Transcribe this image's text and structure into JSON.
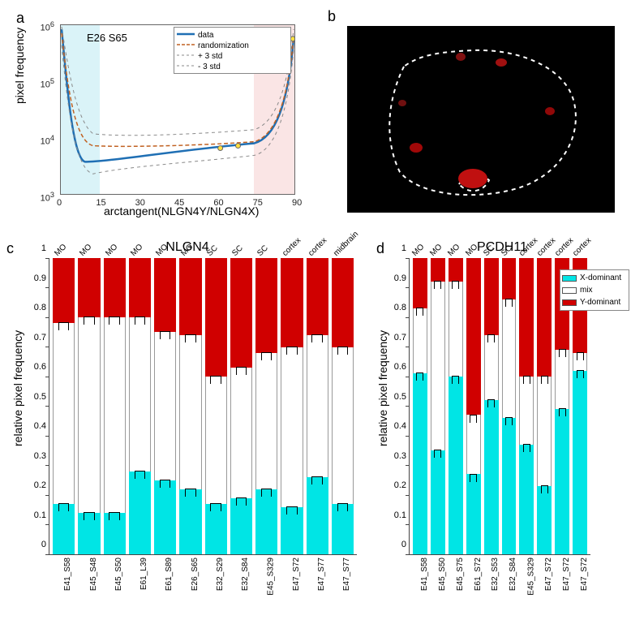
{
  "panel_a": {
    "label": "a",
    "sample": "E26 S65",
    "ylabel": "pixel frequency",
    "xlabel": "arctangent(NLGN4Y/NLGN4X)",
    "ylim": [
      1000,
      1000000
    ],
    "yticks": [
      "10^3",
      "10^4",
      "10^5",
      "10^6"
    ],
    "xlim": [
      0,
      90
    ],
    "xticks": [
      "0",
      "15",
      "30",
      "45",
      "60",
      "75",
      "90"
    ],
    "legend": [
      "data",
      "randomization",
      "+ 3 std",
      "- 3 std"
    ],
    "line_colors": {
      "data": "#1f6fb4",
      "rand": "#c06020",
      "plus3": "#888888",
      "minus3": "#888888"
    },
    "shade_left_color": "#a8e3ed",
    "shade_right_color": "#f4c3c3"
  },
  "panel_b": {
    "label": "b"
  },
  "panel_c": {
    "label": "c",
    "title": "NLGN4",
    "ylabel": "relative pixel frequency",
    "ylim": [
      0,
      1
    ],
    "ytick_step": 0.1,
    "samples": [
      {
        "id": "E41_S58",
        "region": "MO",
        "x": 0.17,
        "mix": 0.61,
        "y": 0.22
      },
      {
        "id": "E45_S48",
        "region": "MO",
        "x": 0.14,
        "mix": 0.66,
        "y": 0.2
      },
      {
        "id": "E45_S50",
        "region": "MO",
        "x": 0.14,
        "mix": 0.66,
        "y": 0.2
      },
      {
        "id": "E61_L39",
        "region": "MO",
        "x": 0.28,
        "mix": 0.52,
        "y": 0.2
      },
      {
        "id": "E61_S89",
        "region": "MO",
        "x": 0.25,
        "mix": 0.5,
        "y": 0.25
      },
      {
        "id": "E26_S65",
        "region": "MO",
        "x": 0.22,
        "mix": 0.52,
        "y": 0.26
      },
      {
        "id": "E32_S29",
        "region": "SC",
        "x": 0.17,
        "mix": 0.43,
        "y": 0.4
      },
      {
        "id": "E32_S84",
        "region": "SC",
        "x": 0.19,
        "mix": 0.44,
        "y": 0.37
      },
      {
        "id": "E45_S329",
        "region": "SC",
        "x": 0.22,
        "mix": 0.46,
        "y": 0.32
      },
      {
        "id": "E47_S72",
        "region": "cortex",
        "x": 0.16,
        "mix": 0.54,
        "y": 0.3
      },
      {
        "id": "E47_S77",
        "region": "cortex",
        "x": 0.26,
        "mix": 0.48,
        "y": 0.26
      },
      {
        "id": "E47_S77",
        "region": "midbrain",
        "x": 0.17,
        "mix": 0.53,
        "y": 0.3
      }
    ],
    "colors": {
      "x": "#00e5e5",
      "mix": "#ffffff",
      "y": "#d00000"
    }
  },
  "panel_d": {
    "label": "d",
    "title": "PCDH11",
    "ylabel": "relative pixel frequency",
    "ylim": [
      0,
      1
    ],
    "ytick_step": 0.1,
    "samples": [
      {
        "id": "E41_S58",
        "region": "MO",
        "x": 0.61,
        "mix": 0.22,
        "y": 0.17
      },
      {
        "id": "E45_S50",
        "region": "MO",
        "x": 0.35,
        "mix": 0.57,
        "y": 0.08
      },
      {
        "id": "E45_S75",
        "region": "MO",
        "x": 0.6,
        "mix": 0.32,
        "y": 0.08
      },
      {
        "id": "E61_S72",
        "region": "MO",
        "x": 0.27,
        "mix": 0.2,
        "y": 0.53
      },
      {
        "id": "E32_S53",
        "region": "SC",
        "x": 0.52,
        "mix": 0.22,
        "y": 0.26
      },
      {
        "id": "E32_S84",
        "region": "SC",
        "x": 0.46,
        "mix": 0.4,
        "y": 0.14
      },
      {
        "id": "E45_S329",
        "region": "cortex",
        "x": 0.37,
        "mix": 0.23,
        "y": 0.4
      },
      {
        "id": "E47_S72",
        "region": "cortex",
        "x": 0.23,
        "mix": 0.37,
        "y": 0.4
      },
      {
        "id": "E47_S72",
        "region": "cortex",
        "x": 0.49,
        "mix": 0.2,
        "y": 0.31
      },
      {
        "id": "E47_S72",
        "region": "cortex",
        "x": 0.62,
        "mix": 0.06,
        "y": 0.32
      }
    ]
  },
  "legend_bars": {
    "items": [
      {
        "label": "X-dominant",
        "color": "#00e5e5"
      },
      {
        "label": "mix",
        "color": "#ffffff"
      },
      {
        "label": "Y-dominant",
        "color": "#d00000"
      }
    ]
  }
}
